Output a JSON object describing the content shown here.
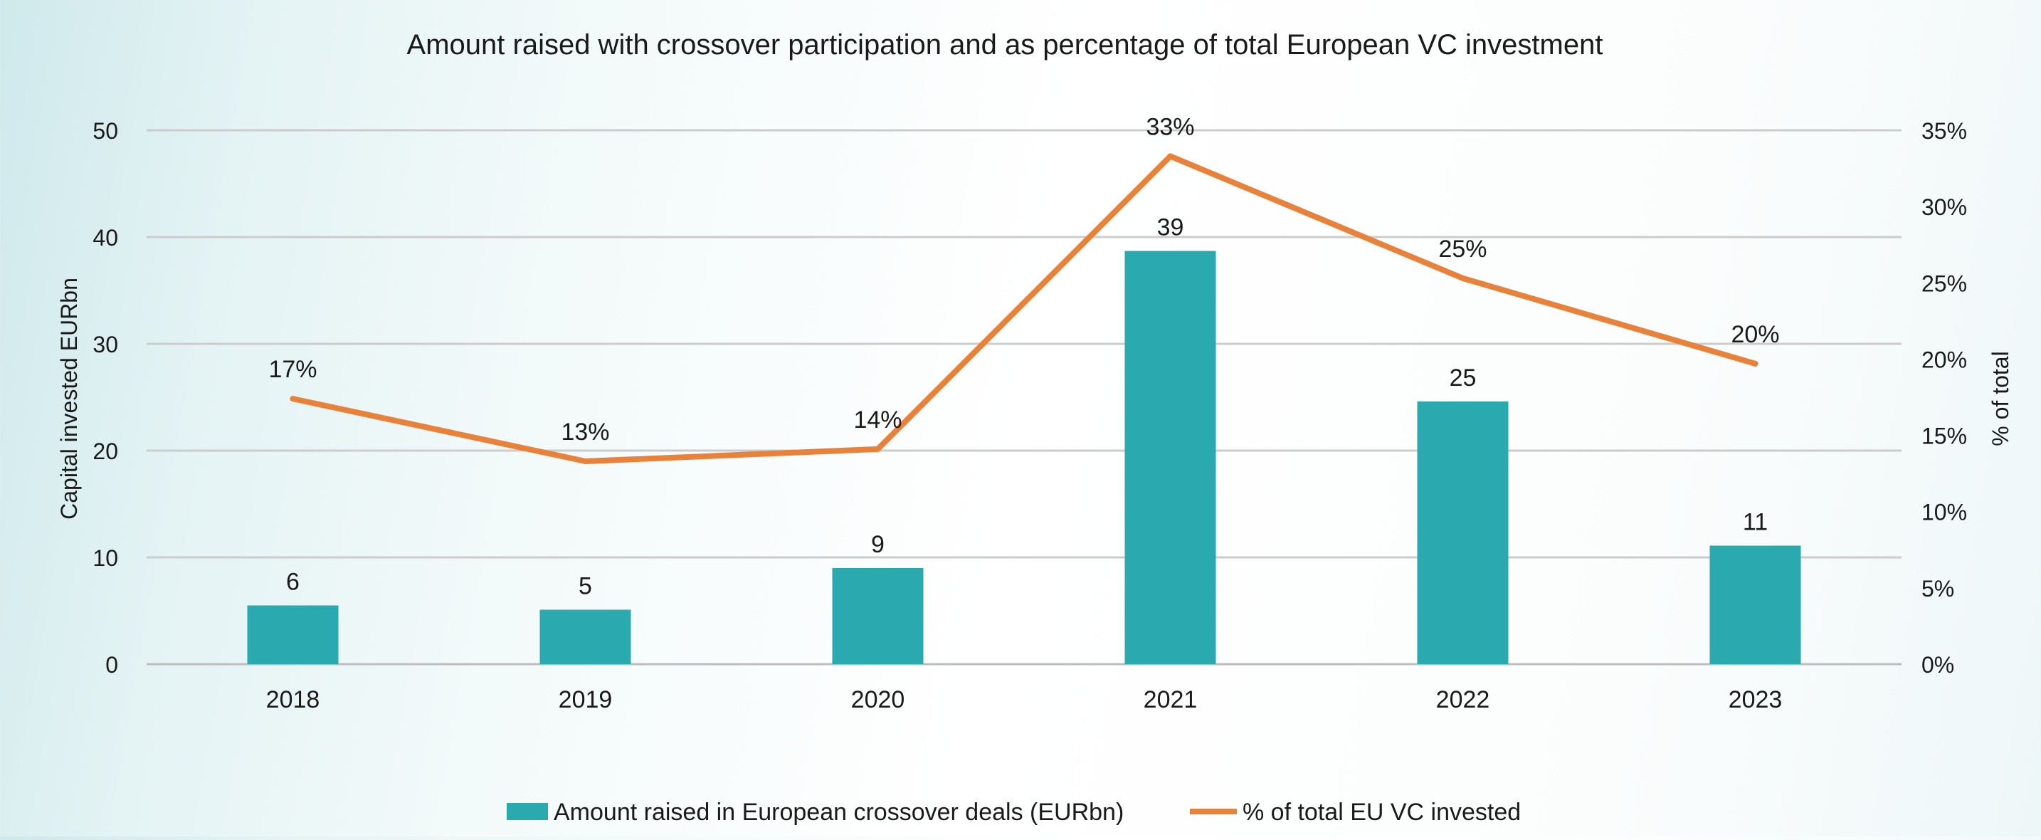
{
  "chart_data": {
    "type": "bar",
    "title": "Amount raised with crossover participation and as percentage of total European VC investment",
    "xlabel": "",
    "ylabel": "Capital invested EURbn",
    "y2label": "% of total",
    "categories": [
      "2018",
      "2019",
      "2020",
      "2021",
      "2022",
      "2023"
    ],
    "ylim": [
      0,
      50
    ],
    "y_ticks": [
      0,
      10,
      20,
      30,
      40,
      50
    ],
    "y_tick_labels": [
      "0",
      "10",
      "20",
      "30",
      "40",
      "50"
    ],
    "y2lim": [
      0,
      35
    ],
    "y2_ticks": [
      0,
      5,
      10,
      15,
      20,
      25,
      30,
      35
    ],
    "y2_tick_labels": [
      "0%",
      "5%",
      "10%",
      "15%",
      "20%",
      "25%",
      "30%",
      "35%"
    ],
    "grid": true,
    "legend_position": "bottom",
    "series": [
      {
        "name": "Amount raised in European crossover deals (EURbn)",
        "type": "bar",
        "axis": "left",
        "color": "#2aa9ae",
        "values": [
          5.5,
          5.1,
          9.0,
          38.7,
          24.6,
          11.1
        ],
        "data_labels": [
          "6",
          "5",
          "9",
          "39",
          "25",
          "11"
        ]
      },
      {
        "name": "% of total EU VC invested",
        "type": "line",
        "axis": "right",
        "color": "#e8823a",
        "values": [
          17.4,
          13.3,
          14.1,
          33.3,
          25.3,
          19.7
        ],
        "data_labels": [
          "17%",
          "13%",
          "14%",
          "33%",
          "25%",
          "20%"
        ]
      }
    ]
  }
}
